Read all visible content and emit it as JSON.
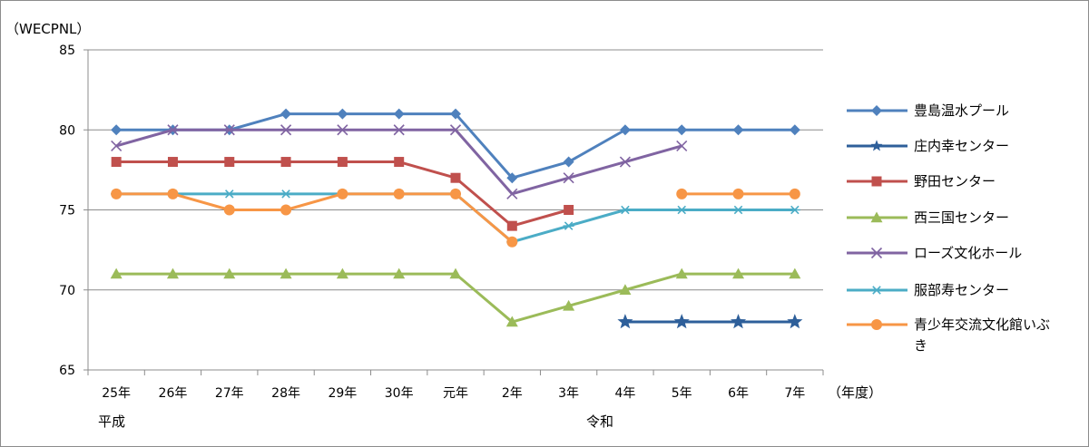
{
  "chart_data": {
    "type": "line",
    "ylabel": "（WECPNL）",
    "xlabel": "（年度）",
    "era_labels": [
      "平成",
      "令和"
    ],
    "categories": [
      "25年",
      "26年",
      "27年",
      "28年",
      "29年",
      "30年",
      "元年",
      "2年",
      "3年",
      "4年",
      "5年",
      "6年",
      "7年"
    ],
    "ylim": [
      65,
      85
    ],
    "yticks": [
      "65",
      "70",
      "75",
      "80",
      "85"
    ],
    "grid": true,
    "legend_position": "right",
    "series": [
      {
        "name": "豊島温水プール",
        "color": "#4f81bd",
        "marker": "diamond",
        "values": [
          80,
          80,
          80,
          81,
          81,
          81,
          81,
          77,
          78,
          80,
          80,
          80,
          80
        ]
      },
      {
        "name": "庄内幸センター",
        "color": "#2e5f9a",
        "marker": "star",
        "values": [
          null,
          null,
          null,
          null,
          null,
          null,
          null,
          null,
          null,
          68,
          68,
          68,
          68
        ]
      },
      {
        "name": "野田センター",
        "color": "#c0504d",
        "marker": "square",
        "values": [
          78,
          78,
          78,
          78,
          78,
          78,
          77,
          74,
          75,
          null,
          null,
          null,
          null
        ]
      },
      {
        "name": "西三国センター",
        "color": "#9bbb59",
        "marker": "triangle",
        "values": [
          71,
          71,
          71,
          71,
          71,
          71,
          71,
          68,
          69,
          70,
          71,
          71,
          71
        ]
      },
      {
        "name": "ローズ文化ホール",
        "color": "#8064a2",
        "marker": "x",
        "values": [
          79,
          80,
          80,
          80,
          80,
          80,
          80,
          76,
          77,
          78,
          79,
          null,
          null
        ]
      },
      {
        "name": "服部寿センター",
        "color": "#4bacc6",
        "marker": "asterisk",
        "values": [
          76,
          76,
          76,
          76,
          76,
          76,
          76,
          73,
          74,
          75,
          75,
          75,
          75
        ]
      },
      {
        "name": "青少年交流文化館いぶき",
        "color": "#f79646",
        "marker": "circle",
        "values": [
          76,
          76,
          75,
          75,
          76,
          76,
          76,
          73,
          null,
          null,
          76,
          76,
          76
        ]
      }
    ]
  }
}
